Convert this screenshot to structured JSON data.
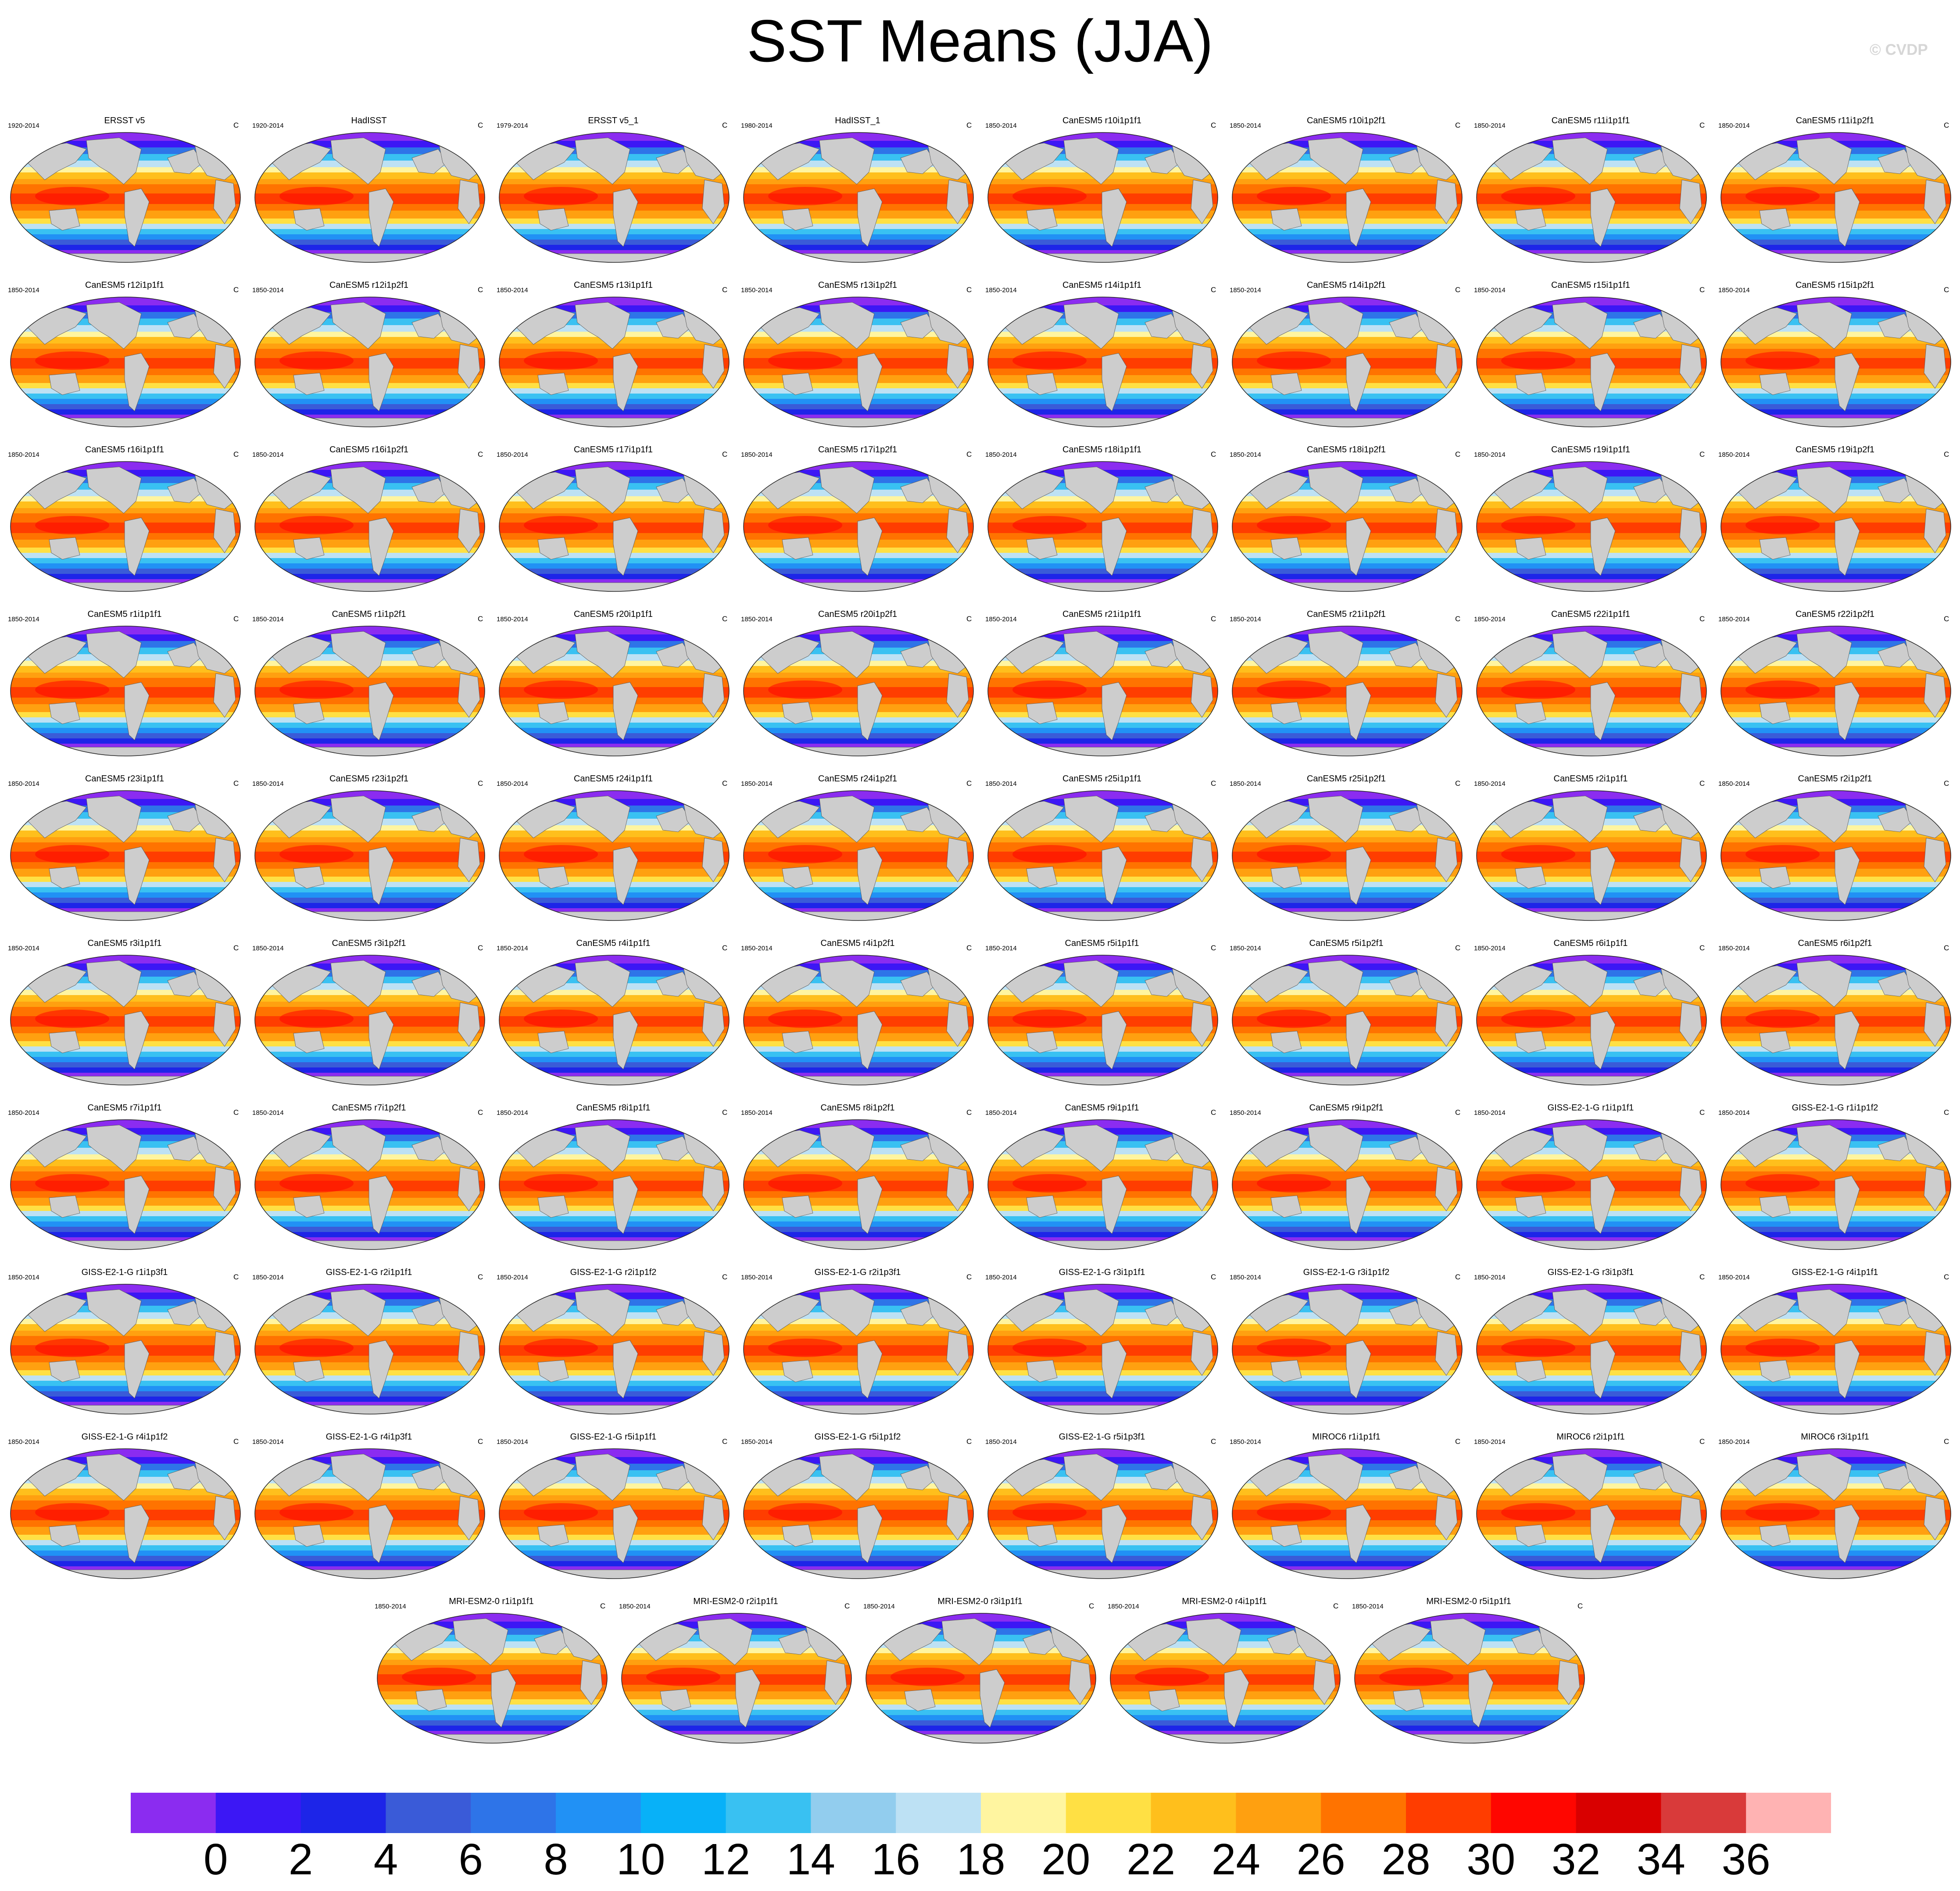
{
  "title": "SST Means (JJA)",
  "credit": "© CVDP",
  "colorbar": {
    "colors": [
      "#8b2cf0",
      "#3c17f5",
      "#1d25e8",
      "#3a5bd8",
      "#2e74e8",
      "#2191f5",
      "#08b1f8",
      "#39c1f2",
      "#92cdee",
      "#bde1f4",
      "#fff5a0",
      "#ffe044",
      "#ffbf1c",
      "#ffa010",
      "#ff7300",
      "#ff3d00",
      "#ff0600",
      "#d90000",
      "#d93a3a",
      "#ffb3b3"
    ],
    "ticks": [
      "0",
      "2",
      "4",
      "6",
      "8",
      "10",
      "12",
      "14",
      "16",
      "18",
      "20",
      "22",
      "24",
      "26",
      "28",
      "30",
      "32",
      "34",
      "36"
    ]
  },
  "chart_data": {
    "type": "heatmap",
    "title": "SST Means (JJA)",
    "units": "C",
    "color_levels": [
      0,
      2,
      4,
      6,
      8,
      10,
      12,
      14,
      16,
      18,
      20,
      22,
      24,
      26,
      28,
      30,
      32,
      34,
      36
    ],
    "panels": [
      {
        "name": "ERSST v5",
        "period": "1920-2014",
        "units": "C"
      },
      {
        "name": "HadISST",
        "period": "1920-2014",
        "units": "C"
      },
      {
        "name": "ERSST v5_1",
        "period": "1979-2014",
        "units": "C"
      },
      {
        "name": "HadISST_1",
        "period": "1980-2014",
        "units": "C"
      },
      {
        "name": "CanESM5 r10i1p1f1",
        "period": "1850-2014",
        "units": "C"
      },
      {
        "name": "CanESM5 r10i1p2f1",
        "period": "1850-2014",
        "units": "C"
      },
      {
        "name": "CanESM5 r11i1p1f1",
        "period": "1850-2014",
        "units": "C"
      },
      {
        "name": "CanESM5 r11i1p2f1",
        "period": "1850-2014",
        "units": "C"
      },
      {
        "name": "CanESM5 r12i1p1f1",
        "period": "1850-2014",
        "units": "C"
      },
      {
        "name": "CanESM5 r12i1p2f1",
        "period": "1850-2014",
        "units": "C"
      },
      {
        "name": "CanESM5 r13i1p1f1",
        "period": "1850-2014",
        "units": "C"
      },
      {
        "name": "CanESM5 r13i1p2f1",
        "period": "1850-2014",
        "units": "C"
      },
      {
        "name": "CanESM5 r14i1p1f1",
        "period": "1850-2014",
        "units": "C"
      },
      {
        "name": "CanESM5 r14i1p2f1",
        "period": "1850-2014",
        "units": "C"
      },
      {
        "name": "CanESM5 r15i1p1f1",
        "period": "1850-2014",
        "units": "C"
      },
      {
        "name": "CanESM5 r15i1p2f1",
        "period": "1850-2014",
        "units": "C"
      },
      {
        "name": "CanESM5 r16i1p1f1",
        "period": "1850-2014",
        "units": "C"
      },
      {
        "name": "CanESM5 r16i1p2f1",
        "period": "1850-2014",
        "units": "C"
      },
      {
        "name": "CanESM5 r17i1p1f1",
        "period": "1850-2014",
        "units": "C"
      },
      {
        "name": "CanESM5 r17i1p2f1",
        "period": "1850-2014",
        "units": "C"
      },
      {
        "name": "CanESM5 r18i1p1f1",
        "period": "1850-2014",
        "units": "C"
      },
      {
        "name": "CanESM5 r18i1p2f1",
        "period": "1850-2014",
        "units": "C"
      },
      {
        "name": "CanESM5 r19i1p1f1",
        "period": "1850-2014",
        "units": "C"
      },
      {
        "name": "CanESM5 r19i1p2f1",
        "period": "1850-2014",
        "units": "C"
      },
      {
        "name": "CanESM5 r1i1p1f1",
        "period": "1850-2014",
        "units": "C"
      },
      {
        "name": "CanESM5 r1i1p2f1",
        "period": "1850-2014",
        "units": "C"
      },
      {
        "name": "CanESM5 r20i1p1f1",
        "period": "1850-2014",
        "units": "C"
      },
      {
        "name": "CanESM5 r20i1p2f1",
        "period": "1850-2014",
        "units": "C"
      },
      {
        "name": "CanESM5 r21i1p1f1",
        "period": "1850-2014",
        "units": "C"
      },
      {
        "name": "CanESM5 r21i1p2f1",
        "period": "1850-2014",
        "units": "C"
      },
      {
        "name": "CanESM5 r22i1p1f1",
        "period": "1850-2014",
        "units": "C"
      },
      {
        "name": "CanESM5 r22i1p2f1",
        "period": "1850-2014",
        "units": "C"
      },
      {
        "name": "CanESM5 r23i1p1f1",
        "period": "1850-2014",
        "units": "C"
      },
      {
        "name": "CanESM5 r23i1p2f1",
        "period": "1850-2014",
        "units": "C"
      },
      {
        "name": "CanESM5 r24i1p1f1",
        "period": "1850-2014",
        "units": "C"
      },
      {
        "name": "CanESM5 r24i1p2f1",
        "period": "1850-2014",
        "units": "C"
      },
      {
        "name": "CanESM5 r25i1p1f1",
        "period": "1850-2014",
        "units": "C"
      },
      {
        "name": "CanESM5 r25i1p2f1",
        "period": "1850-2014",
        "units": "C"
      },
      {
        "name": "CanESM5 r2i1p1f1",
        "period": "1850-2014",
        "units": "C"
      },
      {
        "name": "CanESM5 r2i1p2f1",
        "period": "1850-2014",
        "units": "C"
      },
      {
        "name": "CanESM5 r3i1p1f1",
        "period": "1850-2014",
        "units": "C"
      },
      {
        "name": "CanESM5 r3i1p2f1",
        "period": "1850-2014",
        "units": "C"
      },
      {
        "name": "CanESM5 r4i1p1f1",
        "period": "1850-2014",
        "units": "C"
      },
      {
        "name": "CanESM5 r4i1p2f1",
        "period": "1850-2014",
        "units": "C"
      },
      {
        "name": "CanESM5 r5i1p1f1",
        "period": "1850-2014",
        "units": "C"
      },
      {
        "name": "CanESM5 r5i1p2f1",
        "period": "1850-2014",
        "units": "C"
      },
      {
        "name": "CanESM5 r6i1p1f1",
        "period": "1850-2014",
        "units": "C"
      },
      {
        "name": "CanESM5 r6i1p2f1",
        "period": "1850-2014",
        "units": "C"
      },
      {
        "name": "CanESM5 r7i1p1f1",
        "period": "1850-2014",
        "units": "C"
      },
      {
        "name": "CanESM5 r7i1p2f1",
        "period": "1850-2014",
        "units": "C"
      },
      {
        "name": "CanESM5 r8i1p1f1",
        "period": "1850-2014",
        "units": "C"
      },
      {
        "name": "CanESM5 r8i1p2f1",
        "period": "1850-2014",
        "units": "C"
      },
      {
        "name": "CanESM5 r9i1p1f1",
        "period": "1850-2014",
        "units": "C"
      },
      {
        "name": "CanESM5 r9i1p2f1",
        "period": "1850-2014",
        "units": "C"
      },
      {
        "name": "GISS-E2-1-G r1i1p1f1",
        "period": "1850-2014",
        "units": "C"
      },
      {
        "name": "GISS-E2-1-G r1i1p1f2",
        "period": "1850-2014",
        "units": "C"
      },
      {
        "name": "GISS-E2-1-G r1i1p3f1",
        "period": "1850-2014",
        "units": "C"
      },
      {
        "name": "GISS-E2-1-G r2i1p1f1",
        "period": "1850-2014",
        "units": "C"
      },
      {
        "name": "GISS-E2-1-G r2i1p1f2",
        "period": "1850-2014",
        "units": "C"
      },
      {
        "name": "GISS-E2-1-G r2i1p3f1",
        "period": "1850-2014",
        "units": "C"
      },
      {
        "name": "GISS-E2-1-G r3i1p1f1",
        "period": "1850-2014",
        "units": "C"
      },
      {
        "name": "GISS-E2-1-G r3i1p1f2",
        "period": "1850-2014",
        "units": "C"
      },
      {
        "name": "GISS-E2-1-G r3i1p3f1",
        "period": "1850-2014",
        "units": "C"
      },
      {
        "name": "GISS-E2-1-G r4i1p1f1",
        "period": "1850-2014",
        "units": "C"
      },
      {
        "name": "GISS-E2-1-G r4i1p1f2",
        "period": "1850-2014",
        "units": "C"
      },
      {
        "name": "GISS-E2-1-G r4i1p3f1",
        "period": "1850-2014",
        "units": "C"
      },
      {
        "name": "GISS-E2-1-G r5i1p1f1",
        "period": "1850-2014",
        "units": "C"
      },
      {
        "name": "GISS-E2-1-G r5i1p1f2",
        "period": "1850-2014",
        "units": "C"
      },
      {
        "name": "GISS-E2-1-G r5i1p3f1",
        "period": "1850-2014",
        "units": "C"
      },
      {
        "name": "MIROC6 r1i1p1f1",
        "period": "1850-2014",
        "units": "C"
      },
      {
        "name": "MIROC6 r2i1p1f1",
        "period": "1850-2014",
        "units": "C"
      },
      {
        "name": "MIROC6 r3i1p1f1",
        "period": "1850-2014",
        "units": "C"
      },
      {
        "name": "MRI-ESM2-0 r1i1p1f1",
        "period": "1850-2014",
        "units": "C"
      },
      {
        "name": "MRI-ESM2-0 r2i1p1f1",
        "period": "1850-2014",
        "units": "C"
      },
      {
        "name": "MRI-ESM2-0 r3i1p1f1",
        "period": "1850-2014",
        "units": "C"
      },
      {
        "name": "MRI-ESM2-0 r4i1p1f1",
        "period": "1850-2014",
        "units": "C"
      },
      {
        "name": "MRI-ESM2-0 r5i1p1f1",
        "period": "1850-2014",
        "units": "C"
      }
    ]
  }
}
